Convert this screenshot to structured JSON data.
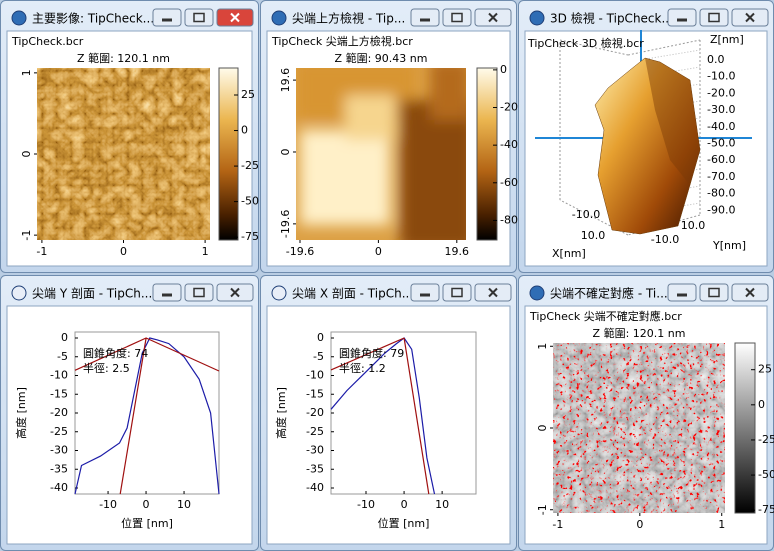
{
  "windows": [
    {
      "type": "image",
      "title": "主要影像: TipCheck...",
      "file": "TipCheck.bcr",
      "z_range": "Z 範圍:  120.1 nm",
      "palette": "brown",
      "xlim": [
        -1.06,
        1.06
      ],
      "ylim": [
        -1.06,
        1.06
      ],
      "xticks": [
        -1,
        0,
        1
      ],
      "yticks": [
        1,
        0,
        -1
      ],
      "clim": [
        -77,
        44
      ],
      "colorbar_ticks": [
        25,
        0,
        -25,
        -50,
        -75
      ]
    },
    {
      "type": "topview",
      "title": "尖端上方檢視 - Tip...",
      "file": "TipCheck 尖端上方檢視.bcr",
      "z_range": "Z 範圍:  90.43 nm",
      "palette": "brown",
      "xlim": [
        -20.6,
        21.9
      ],
      "ylim": [
        -24,
        22.9
      ],
      "xticks": [
        -19.6,
        0,
        19.6
      ],
      "yticks": [
        19.6,
        0,
        -19.6
      ],
      "clim": [
        -90.4,
        1
      ],
      "colorbar_ticks": [
        0,
        -20,
        -40,
        -60,
        -80
      ]
    },
    {
      "type": "3d",
      "title": "3D 檢視 - TipCheck...",
      "file": "TipCheck 3D 檢視.bcr",
      "z_label": "Z[nm]",
      "z_tick_labels": [
        "0.0",
        "-10.0",
        "-20.0",
        "-30.0",
        "-40.0",
        "-50.0",
        "-60.0",
        "-70.0",
        "-80.0",
        "-90.0"
      ],
      "x_tick_labels": [
        "-10.0",
        "10.0"
      ],
      "x_label": "X[nm]",
      "y_tick_labels": [
        "-10.0",
        "10.0"
      ],
      "y_label": "Y[nm]"
    },
    {
      "type": "profile",
      "title": "尖端 Y 剖面 - TipCh...",
      "annotation": [
        "圓錐角度:  74",
        "半徑:  2.5"
      ],
      "xlabel": "位置 [nm]",
      "ylabel": "高度 [nm]",
      "xlim": [
        -18.7,
        19.2
      ],
      "ylim": [
        -41.6,
        1.6
      ],
      "xticks": [
        -10,
        0,
        10
      ],
      "yticks": [
        0,
        -5,
        -10,
        -15,
        -20,
        -25,
        -30,
        -35,
        -40
      ],
      "series": [
        {
          "color": "#1c1ca8",
          "x": [
            -18.7,
            -17,
            -12,
            -7,
            -5,
            -3,
            -1,
            1,
            3,
            6,
            10,
            14,
            17,
            19.2
          ],
          "y": [
            -41.6,
            -34,
            -31.5,
            -28,
            -24,
            -14,
            -4,
            0,
            -0.5,
            -1.5,
            -5,
            -11,
            -20,
            -41.6
          ]
        },
        {
          "color": "#a01010",
          "x": [
            -18.7,
            0,
            19.2
          ],
          "y": [
            -8.6,
            0,
            -8.8
          ]
        },
        {
          "color": "#a01010",
          "x": [
            -6.8,
            0
          ],
          "y": [
            -41.6,
            0
          ]
        }
      ]
    },
    {
      "type": "profile",
      "title": "尖端 X 剖面 - TipCh...",
      "annotation": [
        "圓錐角度:  79",
        "半徑:  1.2"
      ],
      "xlabel": "位置 [nm]",
      "ylabel": "高度 [nm]",
      "xlim": [
        -19.2,
        18.9
      ],
      "ylim": [
        -41.6,
        1.6
      ],
      "xticks": [
        -10,
        0,
        10
      ],
      "yticks": [
        0,
        -5,
        -10,
        -15,
        -20,
        -25,
        -30,
        -35,
        -40
      ],
      "series": [
        {
          "color": "#1c1ca8",
          "x": [
            -19.2,
            -15,
            -10,
            -5,
            -2,
            0,
            2,
            4,
            6,
            8
          ],
          "y": [
            -19,
            -14,
            -9,
            -4,
            -1.5,
            0,
            -3,
            -16,
            -32,
            -41.6
          ]
        },
        {
          "color": "#a01010",
          "x": [
            -19.2,
            0
          ],
          "y": [
            -8.5,
            0
          ]
        },
        {
          "color": "#a01010",
          "x": [
            0,
            6.5
          ],
          "y": [
            0,
            -41.6
          ]
        }
      ]
    },
    {
      "type": "image",
      "title": "尖端不確定對應 - Ti...",
      "file": "TipCheck 尖端不確定對應.bcr",
      "z_range": "Z 範圍:  120.1 nm",
      "palette": "gray",
      "xlim": [
        -1.06,
        1.04
      ],
      "ylim": [
        -1.04,
        1.04
      ],
      "xticks": [
        -1,
        0,
        1
      ],
      "yticks": [
        1,
        0,
        -1
      ],
      "clim": [
        -77,
        44
      ],
      "colorbar_ticks": [
        25,
        0,
        -25,
        -50,
        -75
      ]
    }
  ]
}
